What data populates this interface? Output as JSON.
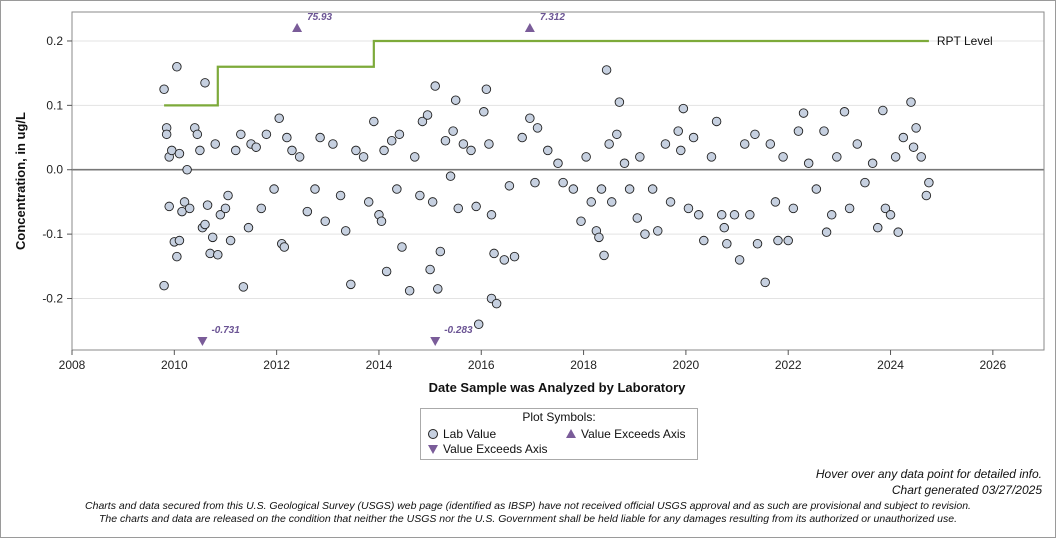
{
  "chart_data": {
    "type": "scatter",
    "xlabel": "Date Sample was Analyzed by Laboratory",
    "ylabel": "Concentration, in ug/L",
    "xlim": [
      2008,
      2027
    ],
    "ylim": [
      -0.28,
      0.245
    ],
    "x_ticks": [
      "2008",
      "2010",
      "2012",
      "2014",
      "2016",
      "2018",
      "2020",
      "2022",
      "2024",
      "2026"
    ],
    "y_ticks": [
      "0.2",
      "0.1",
      "0.0",
      "-0.1",
      "-0.2"
    ],
    "y_tick_values": [
      0.2,
      0.1,
      0.0,
      -0.1,
      -0.2
    ],
    "grid": "horizontal",
    "zero_line": 0.0,
    "rpt_level": {
      "name": "RPT Level",
      "color": "#7daa3a",
      "steps": [
        [
          2009.8,
          0.1
        ],
        [
          2010.85,
          0.1
        ],
        [
          2010.85,
          0.16
        ],
        [
          2013.9,
          0.16
        ],
        [
          2013.9,
          0.2
        ],
        [
          2024.75,
          0.2
        ]
      ]
    },
    "lab_values": {
      "name": "Lab Value",
      "marker_fill": "#c6d0e0",
      "marker_edge": "#222222",
      "points": [
        [
          2009.8,
          0.125
        ],
        [
          2009.8,
          -0.18
        ],
        [
          2009.85,
          0.065
        ],
        [
          2009.85,
          0.055
        ],
        [
          2009.9,
          -0.057
        ],
        [
          2009.9,
          0.02
        ],
        [
          2009.95,
          0.03
        ],
        [
          2010.0,
          -0.112
        ],
        [
          2010.05,
          0.16
        ],
        [
          2010.05,
          -0.135
        ],
        [
          2010.1,
          0.025
        ],
        [
          2010.1,
          -0.11
        ],
        [
          2010.15,
          -0.065
        ],
        [
          2010.2,
          -0.05
        ],
        [
          2010.25,
          0.0
        ],
        [
          2010.3,
          -0.06
        ],
        [
          2010.4,
          0.065
        ],
        [
          2010.45,
          0.055
        ],
        [
          2010.5,
          0.03
        ],
        [
          2010.55,
          -0.09
        ],
        [
          2010.6,
          0.135
        ],
        [
          2010.6,
          -0.085
        ],
        [
          2010.65,
          -0.055
        ],
        [
          2010.7,
          -0.13
        ],
        [
          2010.75,
          -0.105
        ],
        [
          2010.8,
          0.04
        ],
        [
          2010.85,
          -0.132
        ],
        [
          2010.9,
          -0.07
        ],
        [
          2011.0,
          -0.06
        ],
        [
          2011.05,
          -0.04
        ],
        [
          2011.1,
          -0.11
        ],
        [
          2011.2,
          0.03
        ],
        [
          2011.3,
          0.055
        ],
        [
          2011.35,
          -0.182
        ],
        [
          2011.45,
          -0.09
        ],
        [
          2011.5,
          0.04
        ],
        [
          2011.6,
          0.035
        ],
        [
          2011.7,
          -0.06
        ],
        [
          2011.8,
          0.055
        ],
        [
          2011.95,
          -0.03
        ],
        [
          2012.05,
          0.08
        ],
        [
          2012.1,
          -0.115
        ],
        [
          2012.15,
          -0.12
        ],
        [
          2012.2,
          0.05
        ],
        [
          2012.3,
          0.03
        ],
        [
          2012.45,
          0.02
        ],
        [
          2012.6,
          -0.065
        ],
        [
          2012.75,
          -0.03
        ],
        [
          2012.85,
          0.05
        ],
        [
          2012.95,
          -0.08
        ],
        [
          2013.1,
          0.04
        ],
        [
          2013.25,
          -0.04
        ],
        [
          2013.35,
          -0.095
        ],
        [
          2013.45,
          -0.178
        ],
        [
          2013.55,
          0.03
        ],
        [
          2013.7,
          0.02
        ],
        [
          2013.8,
          -0.05
        ],
        [
          2013.9,
          0.075
        ],
        [
          2014.0,
          -0.07
        ],
        [
          2014.05,
          -0.08
        ],
        [
          2014.1,
          0.03
        ],
        [
          2014.15,
          -0.158
        ],
        [
          2014.25,
          0.045
        ],
        [
          2014.35,
          -0.03
        ],
        [
          2014.4,
          0.055
        ],
        [
          2014.45,
          -0.12
        ],
        [
          2014.6,
          -0.188
        ],
        [
          2014.7,
          0.02
        ],
        [
          2014.8,
          -0.04
        ],
        [
          2014.85,
          0.075
        ],
        [
          2014.95,
          0.085
        ],
        [
          2015.0,
          -0.155
        ],
        [
          2015.05,
          -0.05
        ],
        [
          2015.1,
          0.13
        ],
        [
          2015.15,
          -0.185
        ],
        [
          2015.2,
          -0.127
        ],
        [
          2015.3,
          0.045
        ],
        [
          2015.4,
          -0.01
        ],
        [
          2015.45,
          0.06
        ],
        [
          2015.5,
          0.108
        ],
        [
          2015.55,
          -0.06
        ],
        [
          2015.65,
          0.04
        ],
        [
          2015.8,
          0.03
        ],
        [
          2015.9,
          -0.057
        ],
        [
          2015.95,
          -0.24
        ],
        [
          2016.05,
          0.09
        ],
        [
          2016.1,
          0.125
        ],
        [
          2016.15,
          0.04
        ],
        [
          2016.2,
          -0.07
        ],
        [
          2016.2,
          -0.2
        ],
        [
          2016.25,
          -0.13
        ],
        [
          2016.3,
          -0.208
        ],
        [
          2016.45,
          -0.14
        ],
        [
          2016.55,
          -0.025
        ],
        [
          2016.65,
          -0.135
        ],
        [
          2016.8,
          0.05
        ],
        [
          2016.95,
          0.08
        ],
        [
          2017.05,
          -0.02
        ],
        [
          2017.1,
          0.065
        ],
        [
          2017.3,
          0.03
        ],
        [
          2017.5,
          0.01
        ],
        [
          2017.6,
          -0.02
        ],
        [
          2017.8,
          -0.03
        ],
        [
          2017.95,
          -0.08
        ],
        [
          2018.05,
          0.02
        ],
        [
          2018.15,
          -0.05
        ],
        [
          2018.25,
          -0.095
        ],
        [
          2018.3,
          -0.105
        ],
        [
          2018.35,
          -0.03
        ],
        [
          2018.4,
          -0.133
        ],
        [
          2018.45,
          0.155
        ],
        [
          2018.5,
          0.04
        ],
        [
          2018.55,
          -0.05
        ],
        [
          2018.65,
          0.055
        ],
        [
          2018.7,
          0.105
        ],
        [
          2018.8,
          0.01
        ],
        [
          2018.9,
          -0.03
        ],
        [
          2019.05,
          -0.075
        ],
        [
          2019.1,
          0.02
        ],
        [
          2019.2,
          -0.1
        ],
        [
          2019.35,
          -0.03
        ],
        [
          2019.45,
          -0.095
        ],
        [
          2019.6,
          0.04
        ],
        [
          2019.7,
          -0.05
        ],
        [
          2019.85,
          0.06
        ],
        [
          2019.9,
          0.03
        ],
        [
          2019.95,
          0.095
        ],
        [
          2020.05,
          -0.06
        ],
        [
          2020.15,
          0.05
        ],
        [
          2020.25,
          -0.07
        ],
        [
          2020.35,
          -0.11
        ],
        [
          2020.5,
          0.02
        ],
        [
          2020.6,
          0.075
        ],
        [
          2020.7,
          -0.07
        ],
        [
          2020.75,
          -0.09
        ],
        [
          2020.8,
          -0.115
        ],
        [
          2020.95,
          -0.07
        ],
        [
          2021.05,
          -0.14
        ],
        [
          2021.15,
          0.04
        ],
        [
          2021.25,
          -0.07
        ],
        [
          2021.35,
          0.055
        ],
        [
          2021.4,
          -0.115
        ],
        [
          2021.55,
          -0.175
        ],
        [
          2021.65,
          0.04
        ],
        [
          2021.75,
          -0.05
        ],
        [
          2021.8,
          -0.11
        ],
        [
          2021.9,
          0.02
        ],
        [
          2022.0,
          -0.11
        ],
        [
          2022.1,
          -0.06
        ],
        [
          2022.2,
          0.06
        ],
        [
          2022.3,
          0.088
        ],
        [
          2022.4,
          0.01
        ],
        [
          2022.55,
          -0.03
        ],
        [
          2022.7,
          0.06
        ],
        [
          2022.75,
          -0.097
        ],
        [
          2022.85,
          -0.07
        ],
        [
          2022.95,
          0.02
        ],
        [
          2023.1,
          0.09
        ],
        [
          2023.2,
          -0.06
        ],
        [
          2023.35,
          0.04
        ],
        [
          2023.5,
          -0.02
        ],
        [
          2023.65,
          0.01
        ],
        [
          2023.75,
          -0.09
        ],
        [
          2023.85,
          0.092
        ],
        [
          2023.9,
          -0.06
        ],
        [
          2024.0,
          -0.07
        ],
        [
          2024.1,
          0.02
        ],
        [
          2024.15,
          -0.097
        ],
        [
          2024.25,
          0.05
        ],
        [
          2024.4,
          0.105
        ],
        [
          2024.45,
          0.035
        ],
        [
          2024.5,
          0.065
        ],
        [
          2024.6,
          0.02
        ],
        [
          2024.7,
          -0.04
        ],
        [
          2024.75,
          -0.02
        ]
      ]
    },
    "exceeds_high": {
      "name": "Value Exceeds Axis",
      "color": "#7a5c99",
      "points": [
        {
          "x": 2012.4,
          "label": "75.93"
        },
        {
          "x": 2016.95,
          "label": "7.312"
        }
      ]
    },
    "exceeds_low": {
      "name": "Value Exceeds Axis",
      "color": "#7a5c99",
      "points": [
        {
          "x": 2010.55,
          "label": "-0.731"
        },
        {
          "x": 2015.1,
          "label": "-0.283"
        }
      ]
    }
  },
  "legend": {
    "title": "Plot Symbols:",
    "lab_value": "Lab Value",
    "exceeds_up": "Value Exceeds Axis",
    "exceeds_down": "Value Exceeds Axis"
  },
  "note": {
    "hover": "Hover over any data point for detailed info.",
    "generated": "Chart generated 03/27/2025"
  },
  "disclaimer": {
    "line1": "Charts and data secured from this U.S. Geological Survey (USGS) web page (identified as IBSP) have not received official USGS approval and as such are provisional and subject to revision.",
    "line2": "The charts and data are released on the condition that neither the USGS nor the U.S. Government shall be held liable for any damages resulting from its authorized or unauthorized use."
  }
}
